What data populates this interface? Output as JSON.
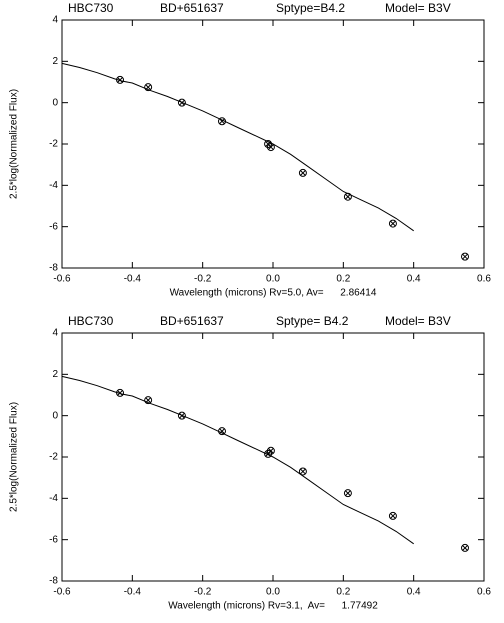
{
  "chart_data": [
    {
      "type": "scatter",
      "header": [
        "HBC730",
        "BD+651637",
        "Sptype=B4.2",
        "Model= B3V"
      ],
      "xlabel": "Wavelength (microns) Rv=5.0, Av=      2.86414",
      "ylabel": "2.5*log(Normalized Flux)",
      "xlim": [
        -0.6,
        0.6
      ],
      "ylim": [
        -8,
        4
      ],
      "xticks": [
        -0.6,
        -0.4,
        -0.2,
        {
          "value": 0,
          "label": "0.0"
        },
        0.2,
        0.4,
        0.6
      ],
      "yticks": [
        -8,
        -6,
        -4,
        -2,
        0,
        2,
        4
      ],
      "series": [
        {
          "mode": "line",
          "color": "#000000",
          "x": [
            -0.6,
            -0.55,
            -0.5,
            -0.45,
            -0.43,
            -0.4,
            -0.35,
            -0.3,
            -0.25,
            -0.2,
            -0.15,
            -0.1,
            -0.05,
            0.0,
            0.05,
            0.1,
            0.15,
            0.2,
            0.25,
            0.3,
            0.35,
            0.4
          ],
          "values": [
            1.9,
            1.7,
            1.45,
            1.15,
            1.05,
            0.95,
            0.6,
            0.3,
            -0.05,
            -0.4,
            -0.8,
            -1.2,
            -1.6,
            -2.0,
            -2.5,
            -3.1,
            -3.7,
            -4.3,
            -4.7,
            -5.1,
            -5.6,
            -6.2
          ]
        },
        {
          "mode": "marker",
          "color": "#000000",
          "x": [
            -0.435,
            -0.355,
            -0.259,
            -0.145,
            -0.014,
            -0.006,
            0.085,
            0.213,
            0.341,
            0.546
          ],
          "values": [
            1.1,
            0.75,
            0.0,
            -0.9,
            -2.0,
            -2.15,
            -3.4,
            -4.55,
            -5.85,
            -7.45
          ]
        }
      ]
    },
    {
      "type": "scatter",
      "header": [
        "HBC730",
        "BD+651637",
        "Sptype= B4.2",
        "Model= B3V"
      ],
      "xlabel": "Wavelength (microns) Rv=3.1,  Av=      1.77492",
      "ylabel": "2.5*log(Normalized Flux)",
      "xlim": [
        -0.6,
        0.6
      ],
      "ylim": [
        -8,
        4
      ],
      "xticks": [
        -0.6,
        -0.4,
        -0.2,
        {
          "value": 0,
          "label": "0.0"
        },
        0.2,
        0.4,
        0.6
      ],
      "yticks": [
        -8,
        -6,
        -4,
        -2,
        0,
        2,
        4
      ],
      "series": [
        {
          "mode": "line",
          "color": "#000000",
          "x": [
            -0.6,
            -0.55,
            -0.5,
            -0.45,
            -0.43,
            -0.4,
            -0.35,
            -0.3,
            -0.25,
            -0.2,
            -0.15,
            -0.1,
            -0.05,
            0.0,
            0.05,
            0.1,
            0.15,
            0.2,
            0.25,
            0.3,
            0.35,
            0.4
          ],
          "values": [
            1.9,
            1.7,
            1.45,
            1.15,
            1.05,
            0.95,
            0.6,
            0.3,
            -0.05,
            -0.4,
            -0.8,
            -1.2,
            -1.6,
            -2.0,
            -2.5,
            -3.1,
            -3.7,
            -4.3,
            -4.7,
            -5.1,
            -5.6,
            -6.2
          ]
        },
        {
          "mode": "marker",
          "color": "#000000",
          "x": [
            -0.435,
            -0.355,
            -0.259,
            -0.145,
            -0.014,
            -0.006,
            0.085,
            0.213,
            0.341,
            0.546
          ],
          "values": [
            1.1,
            0.75,
            0.0,
            -0.75,
            -1.85,
            -1.7,
            -2.7,
            -3.75,
            -4.85,
            -6.4
          ]
        }
      ]
    }
  ]
}
